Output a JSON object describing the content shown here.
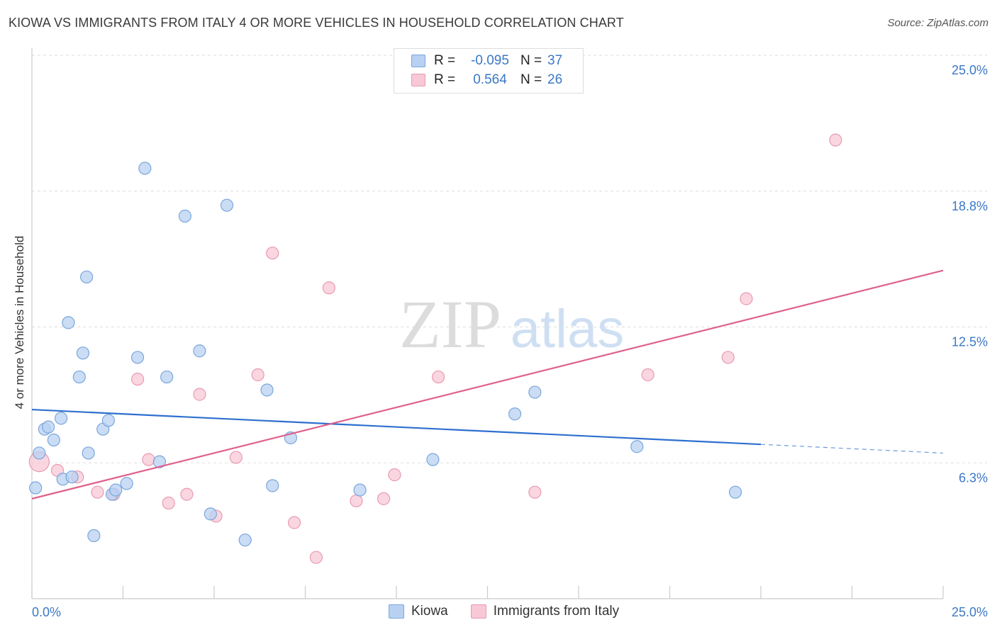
{
  "title": "KIOWA VS IMMIGRANTS FROM ITALY 4 OR MORE VEHICLES IN HOUSEHOLD CORRELATION CHART",
  "source": "Source: ZipAtlas.com",
  "watermark": {
    "zip": "ZIP",
    "atlas": "atlas"
  },
  "legend": {
    "rows": [
      {
        "r_label": "R =",
        "r_value": "-0.095",
        "n_label": "N =",
        "n_value": "37"
      },
      {
        "r_label": "R =",
        "r_value": "0.564",
        "n_label": "N =",
        "n_value": "26"
      }
    ]
  },
  "bottom_legend": [
    "Kiowa",
    "Immigrants from Italy"
  ],
  "colors": {
    "kiowa_fill": "#b8d1f2",
    "kiowa_stroke": "#7aa6dd",
    "kiowa_line": "#2e6fcf",
    "italy_fill": "#f8c8d6",
    "italy_stroke": "#e99ab2",
    "italy_line": "#e0608c",
    "axis_text": "#3b78c6",
    "grid": "#dddddd"
  },
  "chart_data": {
    "type": "scatter",
    "title": "KIOWA VS IMMIGRANTS FROM ITALY 4 OR MORE VEHICLES IN HOUSEHOLD CORRELATION CHART",
    "xlabel": "",
    "ylabel": "4 or more Vehicles in Household",
    "xlim": [
      0,
      25
    ],
    "ylim": [
      0,
      25
    ],
    "x_tick_labels": [
      "0.0%",
      "25.0%"
    ],
    "y_tick_labels": [
      "6.3%",
      "12.5%",
      "18.8%",
      "25.0%"
    ],
    "y_ticks": [
      6.25,
      12.5,
      18.75,
      25.0
    ],
    "grid": true,
    "legend_position": "top-center",
    "series": [
      {
        "name": "Kiowa",
        "r": -0.095,
        "n": 37,
        "points": [
          [
            0.1,
            5.1
          ],
          [
            0.2,
            6.7
          ],
          [
            0.35,
            7.8
          ],
          [
            0.45,
            7.9
          ],
          [
            0.6,
            7.3
          ],
          [
            0.8,
            8.3
          ],
          [
            0.85,
            5.5
          ],
          [
            1.0,
            12.7
          ],
          [
            1.1,
            5.6
          ],
          [
            1.3,
            10.2
          ],
          [
            1.4,
            11.3
          ],
          [
            1.5,
            14.8
          ],
          [
            1.55,
            6.7
          ],
          [
            1.7,
            2.9
          ],
          [
            1.95,
            7.8
          ],
          [
            2.1,
            8.2
          ],
          [
            2.2,
            4.8
          ],
          [
            2.3,
            5.0
          ],
          [
            2.6,
            5.3
          ],
          [
            2.9,
            11.1
          ],
          [
            3.1,
            19.8
          ],
          [
            3.5,
            6.3
          ],
          [
            3.7,
            10.2
          ],
          [
            4.2,
            17.6
          ],
          [
            4.6,
            11.4
          ],
          [
            4.9,
            3.9
          ],
          [
            5.35,
            18.1
          ],
          [
            5.85,
            2.7
          ],
          [
            6.45,
            9.6
          ],
          [
            6.6,
            5.2
          ],
          [
            7.1,
            7.4
          ],
          [
            9.0,
            5.0
          ],
          [
            11.0,
            6.4
          ],
          [
            13.25,
            8.5
          ],
          [
            13.8,
            9.5
          ],
          [
            16.6,
            7.0
          ],
          [
            19.3,
            4.9
          ]
        ],
        "trend": {
          "x0": 0,
          "y0": 8.7,
          "x1": 20.0,
          "y1": 7.1,
          "dash_to_x": 25.0,
          "dash_to_y": 6.7
        }
      },
      {
        "name": "Immigrants from Italy",
        "r": 0.564,
        "n": 26,
        "points": [
          [
            0.2,
            6.3
          ],
          [
            0.7,
            5.9
          ],
          [
            1.25,
            5.6
          ],
          [
            1.8,
            4.9
          ],
          [
            2.25,
            4.8
          ],
          [
            2.9,
            10.1
          ],
          [
            3.2,
            6.4
          ],
          [
            3.75,
            4.4
          ],
          [
            4.25,
            4.8
          ],
          [
            4.6,
            9.4
          ],
          [
            5.05,
            3.8
          ],
          [
            5.6,
            6.5
          ],
          [
            6.2,
            10.3
          ],
          [
            6.6,
            15.9
          ],
          [
            7.2,
            3.5
          ],
          [
            7.8,
            1.9
          ],
          [
            8.15,
            14.3
          ],
          [
            8.9,
            4.5
          ],
          [
            9.65,
            4.6
          ],
          [
            9.95,
            5.7
          ],
          [
            11.15,
            10.2
          ],
          [
            13.8,
            4.9
          ],
          [
            16.9,
            10.3
          ],
          [
            19.1,
            11.1
          ],
          [
            19.6,
            13.8
          ],
          [
            22.05,
            21.1
          ]
        ],
        "trend": {
          "x0": 0,
          "y0": 4.6,
          "x1": 25.0,
          "y1": 15.1
        }
      }
    ]
  }
}
